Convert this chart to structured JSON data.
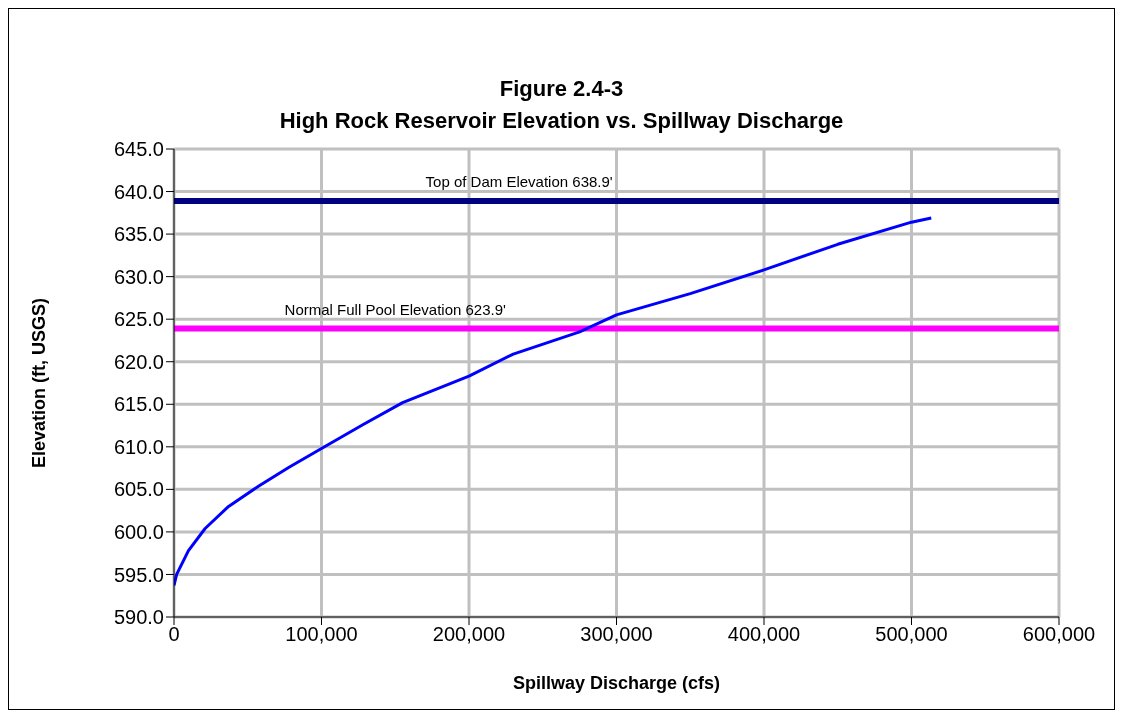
{
  "chart_data": {
    "type": "line",
    "title": "Figure 2.4-3\nHigh Rock Reservoir Elevation vs. Spillway Discharge",
    "xlabel": "Spillway Discharge (cfs)",
    "ylabel": "Elevation (ft, USGS)",
    "x": [
      0,
      1800,
      9800,
      21100,
      37000,
      57500,
      78000,
      100000,
      128000,
      155000,
      200000,
      230000,
      275000,
      300000,
      350000,
      400000,
      450000,
      500000,
      513400
    ],
    "series": [
      {
        "color": "#0000ff",
        "values": [
          593.7,
          595.0,
          597.8,
          600.4,
          603.0,
          605.4,
          607.6,
          609.8,
          612.6,
          615.2,
          618.3,
          620.9,
          623.5,
          625.5,
          628.0,
          630.8,
          633.8,
          636.4,
          636.9
        ]
      }
    ],
    "xlim": [
      0,
      600000
    ],
    "xticks": [
      {
        "value": 0,
        "label": "0"
      },
      {
        "value": 100000,
        "label": "100,000"
      },
      {
        "value": 200000,
        "label": "200,000"
      },
      {
        "value": 300000,
        "label": "300,000"
      },
      {
        "value": 400000,
        "label": "400,000"
      },
      {
        "value": 500000,
        "label": "500,000"
      },
      {
        "value": 600000,
        "label": "600,000"
      }
    ],
    "ylim": [
      590,
      645
    ],
    "yticks": [
      {
        "value": 590,
        "label": "590.0"
      },
      {
        "value": 595,
        "label": "595.0"
      },
      {
        "value": 600,
        "label": "600.0"
      },
      {
        "value": 605,
        "label": "605.0"
      },
      {
        "value": 610,
        "label": "610.0"
      },
      {
        "value": 615,
        "label": "615.0"
      },
      {
        "value": 620,
        "label": "620.0"
      },
      {
        "value": 625,
        "label": "625.0"
      },
      {
        "value": 630,
        "label": "630.0"
      },
      {
        "value": 635,
        "label": "635.0"
      },
      {
        "value": 640,
        "label": "640.0"
      },
      {
        "value": 645,
        "label": "645.0"
      }
    ],
    "ref_lines": [
      {
        "axis": "y",
        "value": 638.9,
        "label": "Top of Dam Elevation 638.9'",
        "color": "#000080"
      },
      {
        "axis": "y",
        "value": 623.9,
        "label": "Normal Full Pool Elevation 623.9'",
        "color": "#ff00ff"
      }
    ],
    "grid": true,
    "marker": "none",
    "line_style": "solid"
  }
}
